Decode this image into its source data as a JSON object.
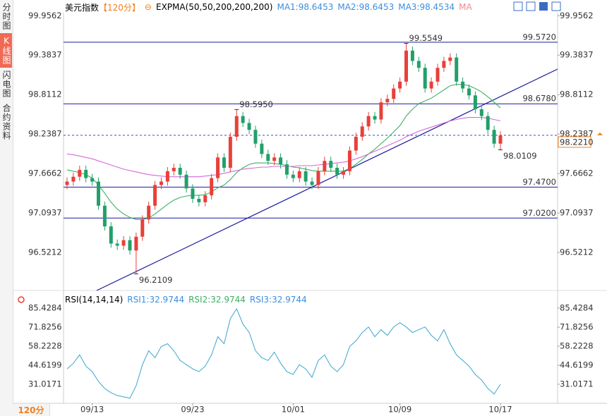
{
  "sidebar": [
    "分时图",
    "K线图",
    "闪电图",
    "合约资料"
  ],
  "period_button": "120分",
  "chart_data": [
    {
      "type": "candlestick",
      "title": "美元指数",
      "subtitle": "【120分】",
      "indicator": "EXPMA(50,50,200,200,200)",
      "legend": [
        {
          "text": "MA1:98.6453",
          "color": "#3b8ee0"
        },
        {
          "text": "MA2:98.6453",
          "color": "#3b8ee0"
        },
        {
          "text": "MA3:98.4534",
          "color": "#3b8ee0"
        },
        {
          "text": "MA",
          "color": "#f08a8a"
        }
      ],
      "categories": [
        null,
        null,
        null,
        null,
        "09/13",
        null,
        null,
        null,
        null,
        null,
        null,
        null,
        null,
        null,
        null,
        null,
        null,
        null,
        null,
        null,
        "09/23",
        null,
        null,
        null,
        null,
        null,
        null,
        null,
        null,
        null,
        null,
        null,
        null,
        null,
        null,
        null,
        "10/01",
        null,
        null,
        null,
        null,
        null,
        null,
        null,
        null,
        null,
        null,
        null,
        null,
        null,
        null,
        null,
        null,
        "10/09",
        null,
        null,
        null,
        null,
        null,
        null,
        null,
        null,
        null,
        null,
        null,
        null,
        null,
        null,
        null,
        "10/17"
      ],
      "open": [
        97.5,
        97.55,
        97.62,
        97.72,
        97.6,
        97.55,
        97.2,
        96.9,
        96.65,
        96.62,
        96.7,
        96.55,
        96.75,
        97.0,
        97.2,
        97.5,
        97.55,
        97.7,
        97.75,
        97.65,
        97.45,
        97.3,
        97.25,
        97.35,
        97.6,
        97.9,
        97.75,
        98.2,
        98.5,
        98.4,
        98.3,
        98.1,
        97.95,
        97.85,
        97.9,
        97.8,
        97.65,
        97.6,
        97.7,
        97.55,
        97.5,
        97.7,
        97.85,
        97.75,
        97.65,
        97.7,
        98.0,
        98.2,
        98.35,
        98.5,
        98.45,
        98.7,
        98.75,
        98.9,
        99.0,
        99.45,
        99.3,
        99.2,
        98.9,
        99.0,
        99.2,
        99.3,
        99.35,
        99.0,
        98.9,
        98.8,
        98.6,
        98.5,
        98.3,
        98.1
      ],
      "high": [
        97.61,
        97.68,
        97.78,
        97.78,
        97.66,
        97.61,
        97.26,
        96.96,
        96.71,
        96.76,
        96.76,
        96.81,
        97.06,
        97.26,
        97.56,
        97.61,
        97.76,
        97.81,
        97.81,
        97.71,
        97.51,
        97.36,
        97.41,
        97.66,
        97.96,
        97.96,
        98.26,
        98.595,
        98.56,
        98.46,
        98.36,
        98.16,
        98.01,
        97.96,
        97.96,
        97.86,
        97.71,
        97.76,
        97.76,
        97.61,
        97.76,
        97.91,
        97.91,
        97.81,
        97.76,
        98.06,
        98.26,
        98.41,
        98.56,
        98.56,
        98.76,
        98.81,
        98.96,
        99.06,
        99.5549,
        99.51,
        99.36,
        99.26,
        99.06,
        99.26,
        99.36,
        99.41,
        99.41,
        99.06,
        98.96,
        98.86,
        98.66,
        98.56,
        98.36,
        98.28
      ],
      "low": [
        97.44,
        97.49,
        97.56,
        97.54,
        97.49,
        97.14,
        96.84,
        96.59,
        96.56,
        96.56,
        96.49,
        96.2109,
        96.69,
        96.94,
        97.14,
        97.44,
        97.49,
        97.64,
        97.59,
        97.39,
        97.24,
        97.19,
        97.19,
        97.29,
        97.54,
        97.69,
        97.69,
        98.14,
        98.34,
        98.24,
        98.04,
        97.89,
        97.79,
        97.79,
        97.74,
        97.59,
        97.54,
        97.54,
        97.49,
        97.44,
        97.44,
        97.64,
        97.69,
        97.59,
        97.59,
        97.64,
        97.94,
        98.14,
        98.29,
        98.39,
        98.39,
        98.64,
        98.69,
        98.84,
        98.94,
        99.24,
        99.14,
        98.84,
        98.84,
        98.94,
        99.14,
        99.24,
        98.94,
        98.84,
        98.74,
        98.54,
        98.44,
        98.24,
        98.04,
        98.0109
      ],
      "close": [
        97.55,
        97.62,
        97.72,
        97.6,
        97.55,
        97.2,
        96.9,
        96.65,
        96.62,
        96.7,
        96.55,
        96.75,
        97.0,
        97.2,
        97.5,
        97.55,
        97.7,
        97.75,
        97.65,
        97.45,
        97.3,
        97.25,
        97.35,
        97.6,
        97.9,
        97.75,
        98.2,
        98.5,
        98.4,
        98.3,
        98.1,
        97.95,
        97.85,
        97.9,
        97.8,
        97.65,
        97.6,
        97.7,
        97.55,
        97.5,
        97.7,
        97.85,
        97.75,
        97.65,
        97.7,
        98.0,
        98.2,
        98.35,
        98.5,
        98.45,
        98.7,
        98.75,
        98.9,
        99.0,
        99.45,
        99.3,
        99.2,
        98.9,
        99.0,
        99.2,
        99.3,
        99.35,
        99.0,
        98.9,
        98.8,
        98.6,
        98.5,
        98.3,
        98.1,
        98.22
      ],
      "high_labels": [
        null,
        null,
        null,
        null,
        null,
        null,
        null,
        null,
        null,
        null,
        null,
        null,
        null,
        null,
        null,
        null,
        null,
        null,
        null,
        null,
        null,
        null,
        null,
        null,
        null,
        null,
        null,
        "98.5950",
        null,
        null,
        null,
        null,
        null,
        null,
        null,
        null,
        null,
        null,
        null,
        null,
        null,
        null,
        null,
        null,
        null,
        null,
        null,
        null,
        null,
        null,
        null,
        null,
        null,
        null,
        "99.5549",
        null,
        null,
        null,
        null,
        null,
        null,
        null,
        null,
        null,
        null,
        null,
        null,
        null,
        null,
        null
      ],
      "low_labels": [
        null,
        null,
        null,
        null,
        null,
        null,
        null,
        null,
        null,
        null,
        null,
        "96.2109",
        null,
        null,
        null,
        null,
        null,
        null,
        null,
        null,
        null,
        null,
        null,
        null,
        null,
        null,
        null,
        null,
        null,
        null,
        null,
        null,
        null,
        null,
        null,
        null,
        null,
        null,
        null,
        null,
        null,
        null,
        null,
        null,
        null,
        null,
        null,
        null,
        null,
        null,
        null,
        null,
        null,
        null,
        null,
        null,
        null,
        null,
        null,
        null,
        null,
        null,
        null,
        null,
        null,
        null,
        null,
        null,
        null,
        "98.0109"
      ],
      "up_color": "#e8403a",
      "down_color": "#22a06a",
      "high_label_color": "#e0506e",
      "low_label_color": "#3aa76d",
      "series": [
        {
          "color": "#3cb062",
          "values": [
            97.72,
            97.7,
            97.68,
            97.65,
            97.6,
            97.5,
            97.38,
            97.25,
            97.15,
            97.08,
            97.03,
            97.0,
            97.0,
            97.02,
            97.08,
            97.15,
            97.22,
            97.28,
            97.32,
            97.34,
            97.35,
            97.35,
            97.36,
            97.4,
            97.46,
            97.5,
            97.58,
            97.68,
            97.75,
            97.8,
            97.82,
            97.82,
            97.82,
            97.81,
            97.8,
            97.78,
            97.76,
            97.75,
            97.73,
            97.71,
            97.7,
            97.7,
            97.7,
            97.7,
            97.7,
            97.74,
            97.8,
            97.87,
            97.95,
            98.02,
            98.1,
            98.18,
            98.27,
            98.36,
            98.5,
            98.6,
            98.68,
            98.72,
            98.76,
            98.82,
            98.88,
            98.94,
            98.96,
            98.96,
            98.94,
            98.9,
            98.85,
            98.78,
            98.7,
            98.62
          ]
        },
        {
          "color": "#d46ad8",
          "values": [
            97.95,
            97.94,
            97.92,
            97.9,
            97.88,
            97.85,
            97.82,
            97.79,
            97.76,
            97.73,
            97.71,
            97.69,
            97.67,
            97.65,
            97.64,
            97.63,
            97.62,
            97.62,
            97.62,
            97.62,
            97.62,
            97.62,
            97.63,
            97.64,
            97.65,
            97.67,
            97.69,
            97.71,
            97.73,
            97.74,
            97.75,
            97.76,
            97.76,
            97.77,
            97.77,
            97.77,
            97.77,
            97.78,
            97.78,
            97.78,
            97.79,
            97.8,
            97.81,
            97.82,
            97.83,
            97.85,
            97.88,
            97.91,
            97.95,
            97.99,
            98.03,
            98.07,
            98.11,
            98.15,
            98.2,
            98.24,
            98.28,
            98.31,
            98.34,
            98.37,
            98.4,
            98.43,
            98.45,
            98.47,
            98.48,
            98.48,
            98.48,
            98.47,
            98.45,
            98.43
          ]
        }
      ],
      "levels": [
        {
          "value": 99.572,
          "label": "99.5720"
        },
        {
          "value": 98.678,
          "label": "98.6780"
        },
        {
          "value": 97.47,
          "label": "97.4700"
        },
        {
          "value": 97.02,
          "label": "97.0200"
        }
      ],
      "level_color": "#1a1aa0",
      "current_price": {
        "value": 98.221,
        "label": "98.2210"
      },
      "ylim": [
        95.99,
        100.0
      ],
      "yticks": [
        99.9562,
        99.3837,
        98.8112,
        98.2387,
        97.6662,
        97.0937,
        96.5212
      ]
    },
    {
      "type": "line",
      "title": "RSI(14,14,14)",
      "legend": [
        {
          "text": "RSI1:32.9744",
          "color": "#3b8ee0"
        },
        {
          "text": "RSI2:32.9744",
          "color": "#3cb062"
        },
        {
          "text": "RSI3:32.9744",
          "color": "#3b8ee0"
        }
      ],
      "series": [
        {
          "color": "#3aa6cc",
          "values": [
            42,
            46,
            52,
            44,
            40,
            33,
            28,
            25,
            23,
            22,
            21,
            30,
            45,
            55,
            50,
            58,
            60,
            55,
            48,
            45,
            42,
            40,
            44,
            52,
            65,
            60,
            78,
            85,
            74,
            68,
            55,
            50,
            48,
            54,
            46,
            40,
            38,
            45,
            42,
            36,
            48,
            52,
            44,
            40,
            45,
            58,
            62,
            68,
            72,
            65,
            70,
            66,
            72,
            75,
            72,
            68,
            70,
            72,
            66,
            62,
            70,
            60,
            52,
            48,
            44,
            38,
            34,
            28,
            24,
            31
          ]
        }
      ],
      "ylim": [
        18.4,
        94.0
      ],
      "yticks": [
        85.4284,
        71.8256,
        58.2228,
        44.6199,
        31.0171
      ]
    }
  ]
}
